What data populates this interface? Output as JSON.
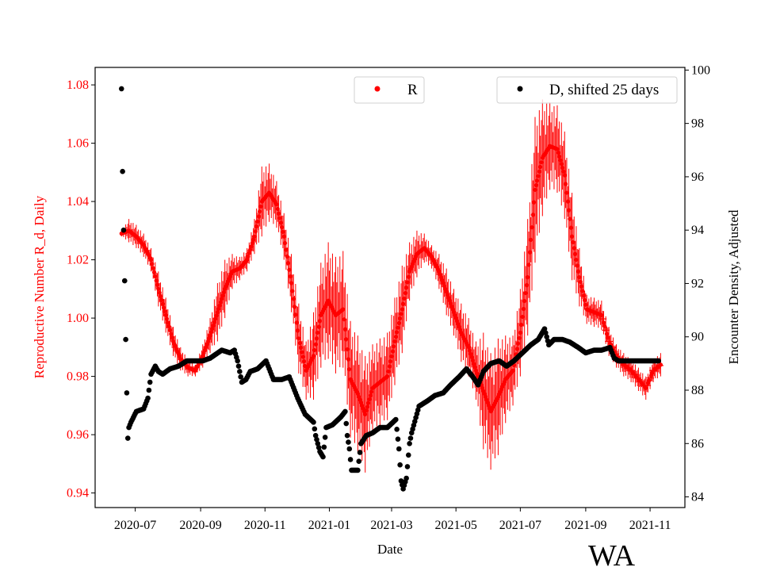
{
  "chart_data": {
    "type": "scatter",
    "title": "",
    "annotation": "WA",
    "xlabel": "Date",
    "ylabel_left": "Reproductive Number R_d, Daily",
    "ylabel_right": "Encounter Density, Adjusted",
    "xticks": [
      "2020-07",
      "2020-09",
      "2020-11",
      "2021-01",
      "2021-03",
      "2021-05",
      "2021-07",
      "2021-09",
      "2021-11"
    ],
    "xtick_days": [
      13,
      75,
      136,
      197,
      256,
      317,
      378,
      440,
      501
    ],
    "xlim_days": [
      -25,
      534
    ],
    "start_date": "2020-06-18",
    "ylim_left": [
      0.935,
      1.086
    ],
    "yticks_left": [
      "0.94",
      "0.96",
      "0.98",
      "1.00",
      "1.02",
      "1.04",
      "1.06",
      "1.08"
    ],
    "ylim_right": [
      83.6,
      100.1
    ],
    "yticks_right": [
      "84",
      "86",
      "88",
      "90",
      "92",
      "94",
      "96",
      "98",
      "100"
    ],
    "colors": {
      "R": "#ff0000",
      "D": "#000000"
    },
    "legend": [
      {
        "label": "R",
        "placement": "top-center"
      },
      {
        "label": "D, shifted 25 days",
        "placement": "top-right"
      }
    ],
    "series": [
      {
        "name": "R",
        "axis": "left",
        "step_days": 7,
        "values": [
          1.029,
          1.03,
          1.028,
          1.025,
          1.02,
          1.01,
          1.001,
          0.992,
          0.986,
          0.983,
          0.982,
          0.987,
          0.994,
          1.002,
          1.01,
          1.016,
          1.017,
          1.02,
          1.028,
          1.04,
          1.043,
          1.039,
          1.028,
          1.012,
          0.993,
          0.982,
          0.987,
          1.001,
          1.006,
          1.001,
          1.003,
          0.979,
          0.974,
          0.967,
          0.976,
          0.978,
          0.98,
          0.992,
          1.003,
          1.016,
          1.022,
          1.024,
          1.021,
          1.016,
          1.009,
          1.002,
          0.995,
          0.99,
          0.982,
          0.975,
          0.968,
          0.973,
          0.979,
          0.982,
          0.995,
          1.014,
          1.044,
          1.055,
          1.059,
          1.058,
          1.049,
          1.028,
          1.014,
          1.003,
          1.002,
          1.001,
          0.992,
          0.987,
          0.984,
          0.982,
          0.979,
          0.976,
          0.982,
          0.984
        ],
        "errors": [
          0.001,
          0.004,
          0.004,
          0.004,
          0.004,
          0.006,
          0.006,
          0.005,
          0.004,
          0.003,
          0.002,
          0.004,
          0.006,
          0.01,
          0.01,
          0.006,
          0.004,
          0.004,
          0.006,
          0.012,
          0.01,
          0.008,
          0.008,
          0.01,
          0.012,
          0.01,
          0.015,
          0.018,
          0.02,
          0.02,
          0.02,
          0.02,
          0.02,
          0.02,
          0.015,
          0.015,
          0.015,
          0.015,
          0.015,
          0.01,
          0.008,
          0.005,
          0.004,
          0.006,
          0.008,
          0.008,
          0.01,
          0.01,
          0.01,
          0.02,
          0.02,
          0.02,
          0.015,
          0.012,
          0.015,
          0.02,
          0.025,
          0.02,
          0.015,
          0.015,
          0.015,
          0.015,
          0.01,
          0.005,
          0.005,
          0.005,
          0.005,
          0.004,
          0.004,
          0.004,
          0.004,
          0.004,
          0.004,
          0.004
        ]
      },
      {
        "name": "D, shifted 25 days",
        "axis": "right",
        "points": [
          [
            0,
            99.3
          ],
          [
            1,
            96.2
          ],
          [
            2,
            94.0
          ],
          [
            3,
            92.1
          ],
          [
            4,
            89.9
          ],
          [
            5,
            87.9
          ],
          [
            6,
            86.2
          ],
          [
            7,
            86.6
          ],
          [
            9,
            86.8
          ],
          [
            14,
            87.2
          ],
          [
            21,
            87.3
          ],
          [
            25,
            87.7
          ],
          [
            28,
            88.6
          ],
          [
            32,
            88.9
          ],
          [
            35,
            88.7
          ],
          [
            39,
            88.6
          ],
          [
            46,
            88.8
          ],
          [
            54,
            88.9
          ],
          [
            62,
            89.1
          ],
          [
            69,
            89.1
          ],
          [
            77,
            89.1
          ],
          [
            84,
            89.2
          ],
          [
            95,
            89.5
          ],
          [
            103,
            89.4
          ],
          [
            107,
            89.5
          ],
          [
            110,
            89.1
          ],
          [
            114,
            88.3
          ],
          [
            118,
            88.4
          ],
          [
            122,
            88.7
          ],
          [
            129,
            88.8
          ],
          [
            137,
            89.1
          ],
          [
            144,
            88.4
          ],
          [
            152,
            88.4
          ],
          [
            159,
            88.5
          ],
          [
            167,
            87.7
          ],
          [
            174,
            87.1
          ],
          [
            182,
            86.8
          ],
          [
            184,
            86.3
          ],
          [
            188,
            85.7
          ],
          [
            191,
            85.5
          ],
          [
            194,
            86.6
          ],
          [
            200,
            86.7
          ],
          [
            208,
            87.0
          ],
          [
            212,
            87.2
          ],
          [
            214,
            86.3
          ],
          [
            216,
            85.8
          ],
          [
            218,
            85.0
          ],
          [
            224,
            85.0
          ],
          [
            227,
            86.0
          ],
          [
            232,
            86.3
          ],
          [
            238,
            86.4
          ],
          [
            245,
            86.6
          ],
          [
            252,
            86.6
          ],
          [
            260,
            86.9
          ],
          [
            263,
            85.8
          ],
          [
            265,
            84.6
          ],
          [
            267,
            84.3
          ],
          [
            270,
            84.7
          ],
          [
            273,
            86.0
          ],
          [
            275,
            86.4
          ],
          [
            282,
            87.4
          ],
          [
            290,
            87.6
          ],
          [
            297,
            87.8
          ],
          [
            305,
            87.9
          ],
          [
            312,
            88.2
          ],
          [
            320,
            88.5
          ],
          [
            327,
            88.8
          ],
          [
            333,
            88.5
          ],
          [
            338,
            88.2
          ],
          [
            343,
            88.7
          ],
          [
            350,
            89.0
          ],
          [
            358,
            89.1
          ],
          [
            365,
            88.9
          ],
          [
            372,
            89.1
          ],
          [
            380,
            89.4
          ],
          [
            388,
            89.7
          ],
          [
            395,
            89.9
          ],
          [
            401,
            90.3
          ],
          [
            405,
            89.7
          ],
          [
            410,
            89.9
          ],
          [
            418,
            89.9
          ],
          [
            425,
            89.8
          ],
          [
            433,
            89.6
          ],
          [
            440,
            89.4
          ],
          [
            448,
            89.5
          ],
          [
            455,
            89.5
          ],
          [
            463,
            89.6
          ],
          [
            467,
            89.2
          ],
          [
            471,
            89.1
          ],
          [
            480,
            89.1
          ],
          [
            490,
            89.1
          ],
          [
            500,
            89.1
          ],
          [
            509,
            89.1
          ]
        ]
      }
    ]
  }
}
